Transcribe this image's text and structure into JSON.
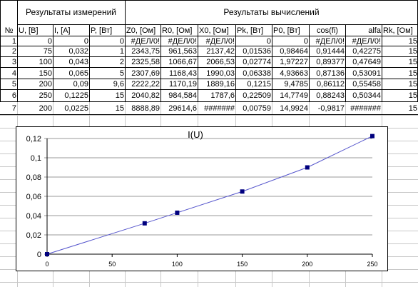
{
  "groups": {
    "measurements": "Результаты измерений",
    "calculations": "Результаты вычислений"
  },
  "headers": [
    "№",
    "U, [В]",
    "I, [A]",
    "P, [Вт]",
    "Z0, [Ом]",
    "R0, [Ом]",
    "X0, [Ом]",
    "Pk, [Вт]",
    "P0, [Вт]",
    "cos(fi)",
    "alfa",
    "Rk, [Ом]"
  ],
  "rows": [
    [
      "1",
      "0",
      "0",
      "0",
      "#ДЕЛ/0!",
      "#ДЕЛ/0!",
      "#ДЕЛ/0!",
      "0",
      "0",
      "#ДЕЛ/0!",
      "#ДЕЛ/0!",
      "15"
    ],
    [
      "2",
      "75",
      "0,032",
      "1",
      "2343,75",
      "961,563",
      "2137,42",
      "0,01536",
      "0,98464",
      "0,91444",
      "0,42275",
      "15"
    ],
    [
      "3",
      "100",
      "0,043",
      "2",
      "2325,58",
      "1066,67",
      "2066,53",
      "0,02774",
      "1,97227",
      "0,89377",
      "0,47649",
      "15"
    ],
    [
      "4",
      "150",
      "0,065",
      "5",
      "2307,69",
      "1168,43",
      "1990,03",
      "0,06338",
      "4,93663",
      "0,87136",
      "0,53091",
      "15"
    ],
    [
      "5",
      "200",
      "0,09",
      "9,6",
      "2222,22",
      "1170,19",
      "1889,16",
      "0,1215",
      "9,4785",
      "0,86112",
      "0,55458",
      "15"
    ],
    [
      "6",
      "250",
      "0,1225",
      "15",
      "2040,82",
      "984,584",
      "1787,6",
      "0,22509",
      "14,7749",
      "0,88243",
      "0,50344",
      "15"
    ],
    [
      "7",
      "200",
      "0,0225",
      "15",
      "8888,89",
      "29614,6",
      "#######",
      "0,00759",
      "14,9924",
      "-0,9817",
      "#######",
      "15"
    ]
  ],
  "chart_data": {
    "type": "line",
    "title": "I(U)",
    "xlabel": "",
    "ylabel": "",
    "x": [
      0,
      75,
      100,
      150,
      200,
      250
    ],
    "series": [
      {
        "values": [
          0,
          0.032,
          0.043,
          0.065,
          0.09,
          0.1225
        ]
      }
    ],
    "xlim": [
      0,
      250
    ],
    "ylim": [
      0,
      0.12
    ],
    "xticks": [
      "0",
      "50",
      "100",
      "150",
      "200",
      "250"
    ],
    "yticks": [
      "0",
      "0,02",
      "0,04",
      "0,06",
      "0,08",
      "0,1",
      "0,12"
    ],
    "grid": "horizontal",
    "legend": "none",
    "colors": {
      "series": "#5555cc",
      "marker": "#00007e"
    }
  }
}
